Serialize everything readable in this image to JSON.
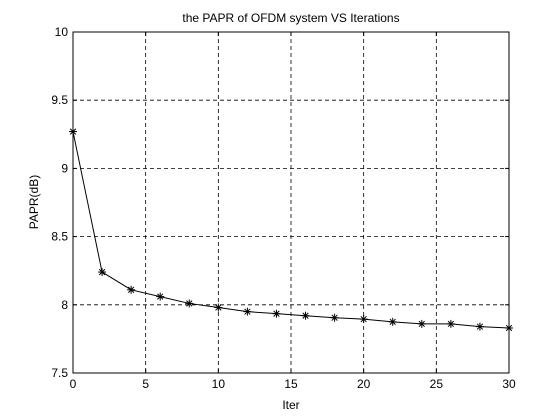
{
  "chart_data": {
    "type": "line",
    "title": "the PAPR of OFDM system VS Iterations",
    "xlabel": "Iter",
    "ylabel": "PAPR(dB)",
    "xlim": [
      0,
      30
    ],
    "ylim": [
      7.5,
      10
    ],
    "xticks": [
      0,
      5,
      10,
      15,
      20,
      25,
      30
    ],
    "yticks": [
      7.5,
      8,
      8.5,
      9,
      9.5,
      10
    ],
    "xtick_labels": [
      "0",
      "5",
      "10",
      "15",
      "20",
      "25",
      "30"
    ],
    "ytick_labels": [
      "7.5",
      "8",
      "8.5",
      "9",
      "9.5",
      "10"
    ],
    "grid": true,
    "marker": "asterisk",
    "line_color": "#000000",
    "series": [
      {
        "x": [
          0,
          2,
          4,
          6,
          8,
          10,
          12,
          14,
          16,
          18,
          20,
          22,
          24,
          26,
          28,
          30
        ],
        "y": [
          9.27,
          8.24,
          8.11,
          8.06,
          8.01,
          7.98,
          7.95,
          7.935,
          7.92,
          7.905,
          7.895,
          7.875,
          7.86,
          7.86,
          7.84,
          7.83
        ]
      }
    ]
  }
}
